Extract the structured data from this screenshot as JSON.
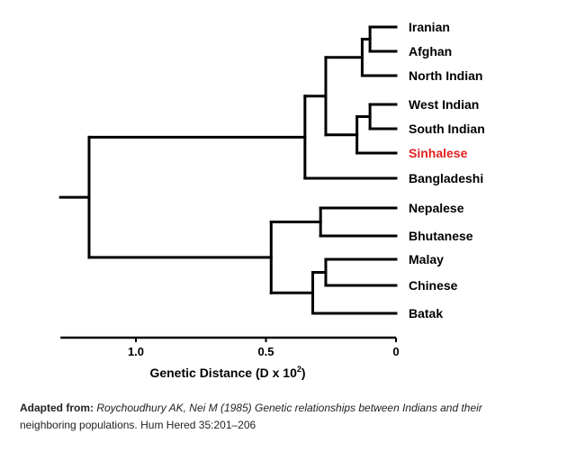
{
  "tree": {
    "taxa": [
      {
        "name": "Iranian",
        "color": "#000000"
      },
      {
        "name": "Afghan",
        "color": "#000000"
      },
      {
        "name": "North Indian",
        "color": "#000000"
      },
      {
        "name": "West Indian",
        "color": "#000000"
      },
      {
        "name": "South Indian",
        "color": "#000000"
      },
      {
        "name": "Sinhalese",
        "color": "#e02020"
      },
      {
        "name": "Bangladeshi",
        "color": "#000000"
      },
      {
        "name": "Nepalese",
        "color": "#000000"
      },
      {
        "name": "Bhutanese",
        "color": "#000000"
      },
      {
        "name": "Malay",
        "color": "#000000"
      },
      {
        "name": "Chinese",
        "color": "#000000"
      },
      {
        "name": "Batak",
        "color": "#000000"
      }
    ],
    "nodes": [
      {
        "id": "n1",
        "height": 0.1,
        "children": [
          "t0",
          "t1"
        ]
      },
      {
        "id": "n2",
        "height": 0.13,
        "children": [
          "n1",
          "t2"
        ]
      },
      {
        "id": "n3",
        "height": 0.1,
        "children": [
          "t3",
          "t4"
        ]
      },
      {
        "id": "n4",
        "height": 0.15,
        "children": [
          "n3",
          "t5"
        ]
      },
      {
        "id": "n5",
        "height": 0.27,
        "children": [
          "n2",
          "n4"
        ]
      },
      {
        "id": "n6",
        "height": 0.35,
        "children": [
          "n5",
          "t6"
        ]
      },
      {
        "id": "n7",
        "height": 0.29,
        "children": [
          "t7",
          "t8"
        ]
      },
      {
        "id": "n8",
        "height": 0.27,
        "children": [
          "t9",
          "t10"
        ]
      },
      {
        "id": "n9",
        "height": 0.32,
        "children": [
          "n8",
          "t11"
        ]
      },
      {
        "id": "n10",
        "height": 0.48,
        "children": [
          "n7",
          "n9"
        ]
      },
      {
        "id": "n11",
        "height": 1.18,
        "children": [
          "n6",
          "n10"
        ]
      }
    ],
    "root_stub_length": 0.11
  },
  "axis": {
    "title_main": "Genetic Distance (D x 10",
    "title_sup": "2",
    "title_end": ")",
    "ticks": [
      {
        "value": 1.0,
        "label": "1.0"
      },
      {
        "value": 0.5,
        "label": "0.5"
      },
      {
        "value": 0,
        "label": "0"
      }
    ],
    "range": [
      1.29,
      0
    ]
  },
  "caption": {
    "prefix": "Adapted from:",
    "citation": "Roychoudhury AK, Nei M (1985) Genetic relationships between Indians and their",
    "rest": "neighboring populations. Hum Hered 35:201–206"
  }
}
